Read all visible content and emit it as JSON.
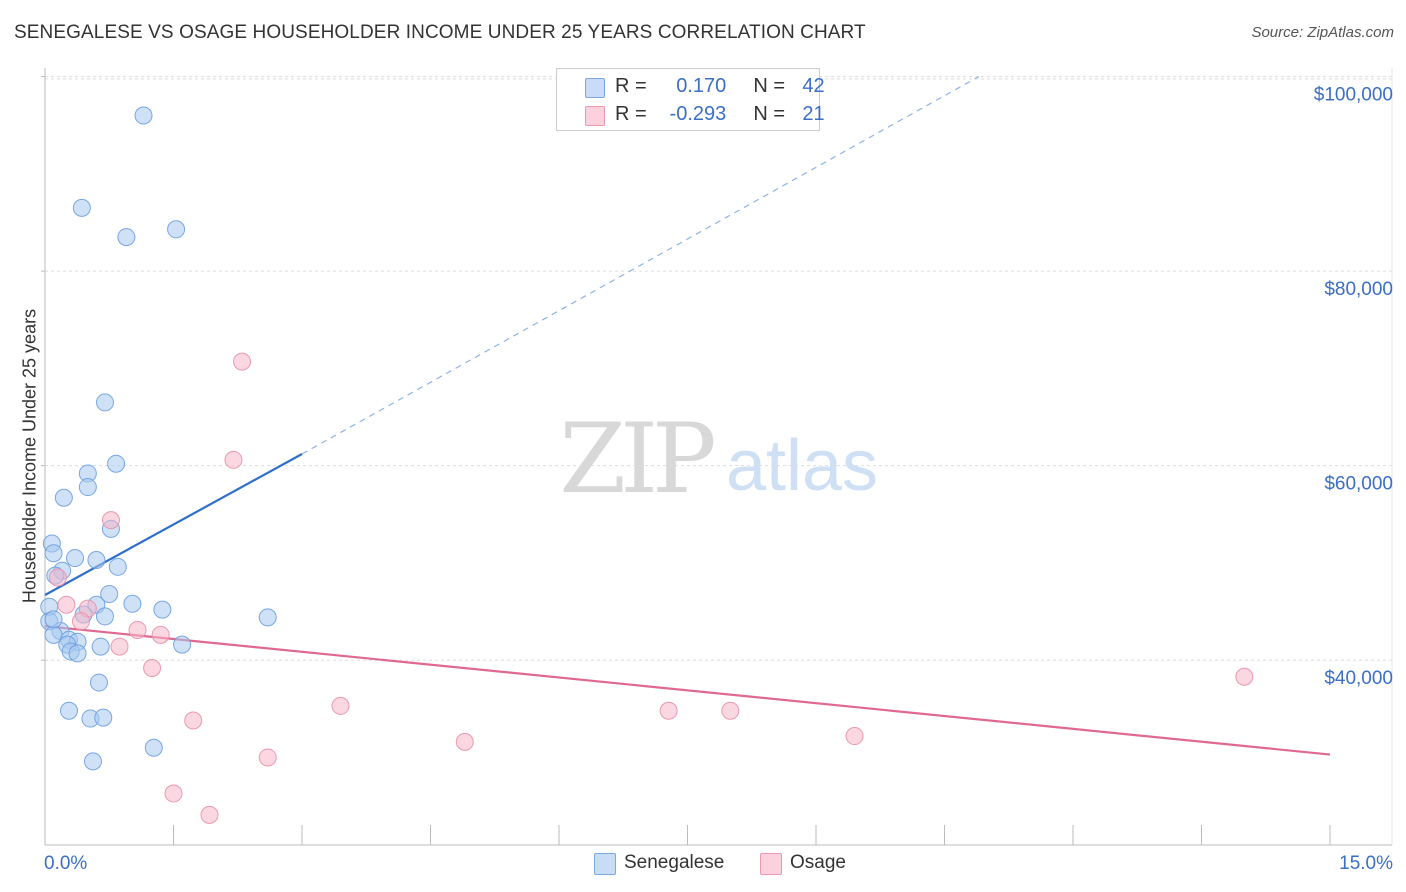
{
  "title": "SENEGALESE VS OSAGE HOUSEHOLDER INCOME UNDER 25 YEARS CORRELATION CHART",
  "source": "Source: ZipAtlas.com",
  "watermark": {
    "zip": "ZIP",
    "atlas": "atlas"
  },
  "legend": {
    "rows": [
      {
        "r_label": "R =",
        "r_value": "0.170",
        "n_label": "N =",
        "n_value": "42",
        "color": "#a8c8f0"
      },
      {
        "r_label": "R =",
        "r_value": "-0.293",
        "n_label": "N =",
        "n_value": "21",
        "color": "#f5b6c8"
      }
    ]
  },
  "bottom_legend": [
    {
      "label": "Senegalese",
      "color": "#a8c8f0"
    },
    {
      "label": "Osage",
      "color": "#f5b6c8"
    }
  ],
  "chart_data": {
    "type": "scatter",
    "title": "SENEGALESE VS OSAGE HOUSEHOLDER INCOME UNDER 25 YEARS CORRELATION CHART",
    "xlabel": "",
    "ylabel": "Householder Income Under 25 years",
    "xlim": [
      0,
      15
    ],
    "ylim": [
      21000,
      101500
    ],
    "x_tick_labels": [
      "0.0%",
      "15.0%"
    ],
    "y_ticks": [
      40000,
      60000,
      80000,
      100000
    ],
    "y_tick_labels": [
      "$40,000",
      "$60,000",
      "$80,000",
      "$100,000"
    ],
    "grid": true,
    "series": [
      {
        "name": "Senegalese",
        "color": "#6a9fe0",
        "fill": "#a8c8f0",
        "trend": {
          "x0": 0.0,
          "y0": 46700,
          "x1": 3.0,
          "y1": 61200,
          "dash_to_x": 10.9,
          "dash_to_y": 100000,
          "color": "#2f6fcc"
        },
        "points": [
          [
            1.15,
            96000
          ],
          [
            0.43,
            86500
          ],
          [
            0.95,
            83500
          ],
          [
            1.53,
            84300
          ],
          [
            0.7,
            66500
          ],
          [
            0.83,
            60200
          ],
          [
            0.5,
            59200
          ],
          [
            0.5,
            57800
          ],
          [
            0.22,
            56700
          ],
          [
            0.08,
            52000
          ],
          [
            0.1,
            51000
          ],
          [
            0.35,
            50500
          ],
          [
            0.6,
            50300
          ],
          [
            0.85,
            49600
          ],
          [
            0.2,
            49200
          ],
          [
            0.12,
            48700
          ],
          [
            0.77,
            53500
          ],
          [
            0.75,
            46800
          ],
          [
            0.05,
            45500
          ],
          [
            0.6,
            45700
          ],
          [
            1.02,
            45800
          ],
          [
            1.37,
            45200
          ],
          [
            0.45,
            44700
          ],
          [
            0.7,
            44500
          ],
          [
            2.6,
            44400
          ],
          [
            0.05,
            44000
          ],
          [
            0.18,
            43000
          ],
          [
            0.1,
            42600
          ],
          [
            0.28,
            42100
          ],
          [
            0.38,
            41900
          ],
          [
            0.26,
            41600
          ],
          [
            1.6,
            41600
          ],
          [
            0.65,
            41400
          ],
          [
            0.3,
            40900
          ],
          [
            0.38,
            40700
          ],
          [
            0.63,
            37700
          ],
          [
            0.28,
            34800
          ],
          [
            0.53,
            34000
          ],
          [
            0.68,
            34100
          ],
          [
            1.27,
            31000
          ],
          [
            0.56,
            29600
          ],
          [
            0.1,
            44200
          ]
        ]
      },
      {
        "name": "Osage",
        "color": "#e890aa",
        "fill": "#f5b6c8",
        "trend": {
          "x0": 0.0,
          "y0": 43500,
          "x1": 15.0,
          "y1": 30300,
          "color": "#e06892"
        },
        "points": [
          [
            2.3,
            70700
          ],
          [
            2.2,
            60600
          ],
          [
            0.77,
            54400
          ],
          [
            0.15,
            48500
          ],
          [
            0.25,
            45700
          ],
          [
            0.5,
            45300
          ],
          [
            0.42,
            44000
          ],
          [
            1.08,
            43100
          ],
          [
            1.35,
            42600
          ],
          [
            0.87,
            41400
          ],
          [
            1.25,
            39200
          ],
          [
            3.45,
            35300
          ],
          [
            1.73,
            33800
          ],
          [
            7.28,
            34800
          ],
          [
            8.0,
            34800
          ],
          [
            4.9,
            31600
          ],
          [
            9.45,
            32200
          ],
          [
            2.6,
            30000
          ],
          [
            14.0,
            38300
          ],
          [
            1.5,
            26300
          ],
          [
            1.92,
            24100
          ]
        ]
      }
    ]
  }
}
